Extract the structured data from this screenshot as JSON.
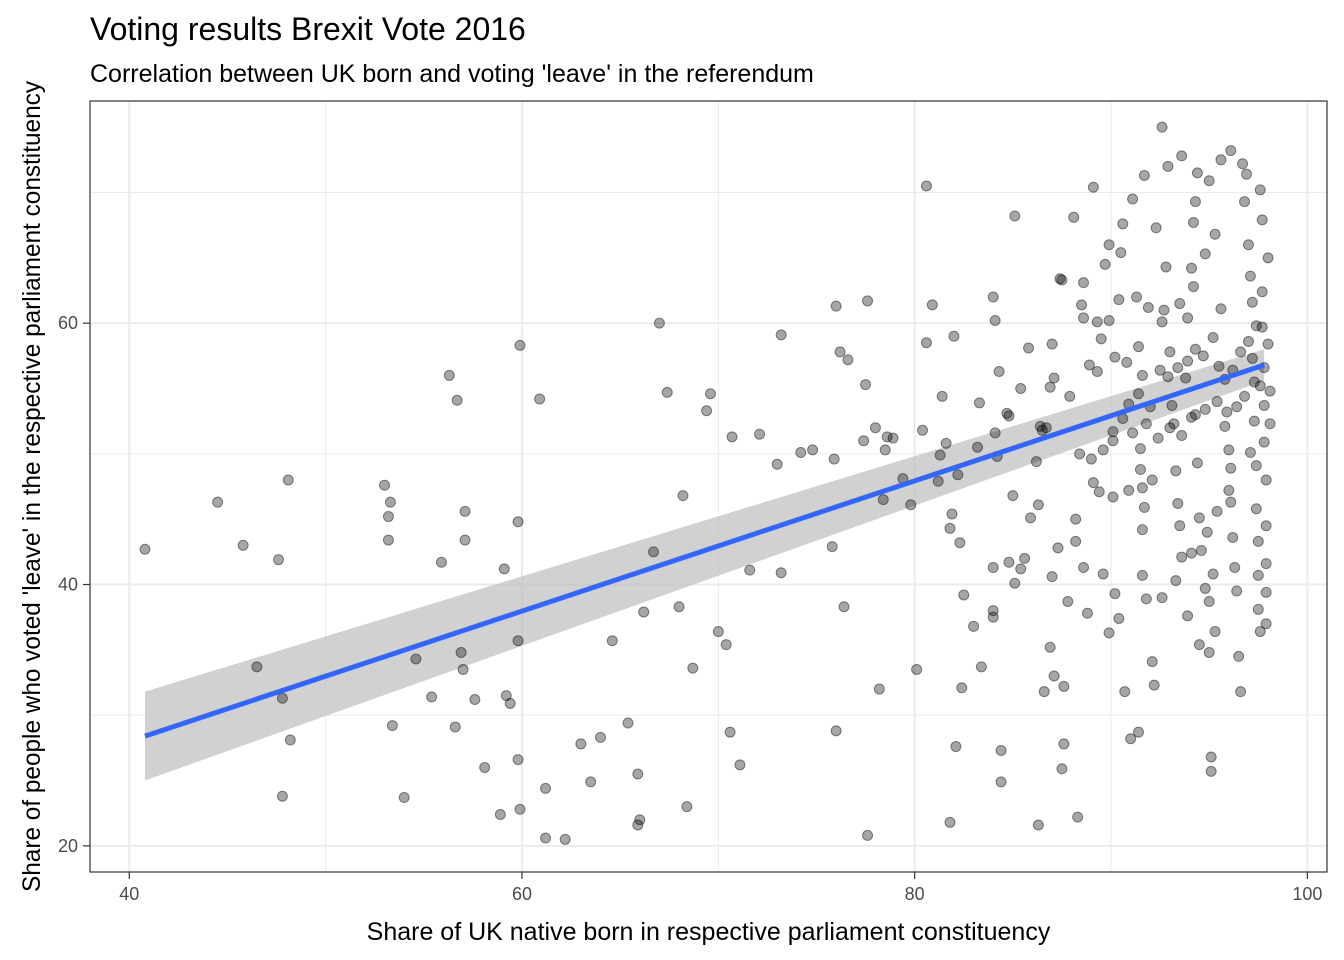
{
  "chart_data": {
    "type": "scatter",
    "title": "Voting results Brexit Vote 2016",
    "subtitle": "Correlation between UK born and voting 'leave' in the referendum",
    "xlabel": "Share of UK native born in respective parliament constituency",
    "ylabel": "Share of people who voted 'leave' in the respective parliament constituency",
    "xlim": [
      38,
      101
    ],
    "ylim": [
      18,
      77
    ],
    "x_ticks": [
      40,
      60,
      80,
      100
    ],
    "y_ticks": [
      20,
      40,
      60
    ],
    "grid": true,
    "point_color": "#000000",
    "point_opacity": 0.35,
    "trend": {
      "color": "#3366ff",
      "band_color": "#bdbdbd",
      "x": [
        40.8,
        97.8
      ],
      "y": [
        28.4,
        56.8
      ],
      "lower": [
        25.0,
        55.6
      ],
      "upper": [
        31.8,
        58.0
      ]
    },
    "points": [
      [
        40.8,
        42.7
      ],
      [
        44.5,
        46.3
      ],
      [
        45.8,
        43.0
      ],
      [
        46.5,
        33.7
      ],
      [
        47.6,
        41.9
      ],
      [
        47.8,
        31.3
      ],
      [
        48.1,
        48.0
      ],
      [
        48.2,
        28.1
      ],
      [
        47.8,
        23.8
      ],
      [
        53.0,
        47.6
      ],
      [
        53.3,
        46.3
      ],
      [
        53.2,
        45.2
      ],
      [
        53.2,
        43.4
      ],
      [
        53.4,
        29.2
      ],
      [
        54.0,
        23.7
      ],
      [
        54.6,
        34.3
      ],
      [
        55.4,
        31.4
      ],
      [
        55.9,
        41.7
      ],
      [
        56.3,
        56.0
      ],
      [
        56.7,
        54.1
      ],
      [
        56.6,
        29.1
      ],
      [
        56.9,
        34.8
      ],
      [
        57.0,
        33.5
      ],
      [
        57.1,
        45.6
      ],
      [
        57.1,
        43.4
      ],
      [
        57.6,
        31.2
      ],
      [
        58.1,
        26.0
      ],
      [
        59.1,
        41.2
      ],
      [
        59.2,
        31.5
      ],
      [
        59.4,
        30.9
      ],
      [
        58.9,
        22.4
      ],
      [
        59.9,
        58.3
      ],
      [
        59.8,
        44.8
      ],
      [
        59.8,
        35.7
      ],
      [
        59.8,
        26.6
      ],
      [
        59.9,
        22.8
      ],
      [
        60.9,
        54.2
      ],
      [
        61.2,
        24.4
      ],
      [
        61.2,
        20.6
      ],
      [
        62.2,
        20.5
      ],
      [
        63.0,
        27.8
      ],
      [
        63.5,
        24.9
      ],
      [
        64.0,
        28.3
      ],
      [
        64.6,
        35.7
      ],
      [
        65.4,
        29.4
      ],
      [
        65.9,
        25.5
      ],
      [
        65.9,
        21.6
      ],
      [
        66.0,
        22.0
      ],
      [
        66.2,
        37.9
      ],
      [
        66.7,
        42.5
      ],
      [
        67.0,
        60.0
      ],
      [
        67.4,
        54.7
      ],
      [
        68.0,
        38.3
      ],
      [
        68.2,
        46.8
      ],
      [
        68.4,
        23.0
      ],
      [
        68.7,
        33.6
      ],
      [
        69.4,
        53.3
      ],
      [
        69.6,
        54.6
      ],
      [
        70.0,
        36.4
      ],
      [
        70.4,
        35.4
      ],
      [
        70.6,
        28.7
      ],
      [
        70.7,
        51.3
      ],
      [
        71.1,
        26.2
      ],
      [
        71.6,
        41.1
      ],
      [
        72.1,
        51.5
      ],
      [
        73.0,
        49.2
      ],
      [
        73.2,
        40.9
      ],
      [
        73.2,
        59.1
      ],
      [
        74.2,
        50.1
      ],
      [
        74.8,
        50.3
      ],
      [
        76.0,
        61.3
      ],
      [
        75.9,
        49.6
      ],
      [
        75.8,
        42.9
      ],
      [
        76.0,
        28.8
      ],
      [
        76.2,
        57.8
      ],
      [
        76.4,
        38.3
      ],
      [
        76.6,
        57.2
      ],
      [
        77.4,
        51.0
      ],
      [
        77.5,
        55.3
      ],
      [
        77.6,
        61.7
      ],
      [
        77.6,
        20.8
      ],
      [
        78.0,
        52.0
      ],
      [
        78.2,
        32.0
      ],
      [
        78.4,
        46.5
      ],
      [
        78.5,
        50.3
      ],
      [
        78.6,
        51.3
      ],
      [
        78.9,
        51.2
      ],
      [
        79.4,
        48.1
      ],
      [
        79.8,
        46.1
      ],
      [
        80.1,
        33.5
      ],
      [
        80.4,
        51.8
      ],
      [
        80.6,
        58.5
      ],
      [
        80.6,
        70.5
      ],
      [
        80.9,
        61.4
      ],
      [
        81.3,
        49.9
      ],
      [
        81.4,
        54.4
      ],
      [
        81.2,
        47.9
      ],
      [
        81.8,
        44.3
      ],
      [
        81.8,
        21.8
      ],
      [
        82.0,
        59.0
      ],
      [
        82.1,
        27.6
      ],
      [
        82.2,
        48.4
      ],
      [
        82.3,
        43.2
      ],
      [
        82.4,
        32.1
      ],
      [
        83.3,
        53.9
      ],
      [
        84.0,
        62.0
      ],
      [
        84.0,
        37.5
      ],
      [
        84.0,
        38.0
      ],
      [
        84.1,
        60.2
      ],
      [
        84.1,
        51.6
      ],
      [
        84.2,
        49.8
      ],
      [
        84.3,
        56.3
      ],
      [
        84.4,
        27.3
      ],
      [
        84.4,
        24.9
      ],
      [
        84.8,
        41.7
      ],
      [
        84.7,
        53.1
      ],
      [
        84.8,
        52.9
      ],
      [
        85.0,
        46.8
      ],
      [
        85.1,
        68.2
      ],
      [
        85.4,
        41.2
      ],
      [
        85.8,
        58.1
      ],
      [
        86.4,
        52.1
      ],
      [
        86.5,
        51.8
      ],
      [
        86.3,
        21.6
      ],
      [
        86.7,
        52.0
      ],
      [
        87.0,
        58.4
      ],
      [
        87.1,
        55.8
      ],
      [
        87.1,
        33.0
      ],
      [
        87.4,
        63.4
      ],
      [
        87.5,
        63.3
      ],
      [
        87.6,
        27.8
      ],
      [
        87.5,
        25.9
      ],
      [
        87.6,
        32.2
      ],
      [
        88.1,
        68.1
      ],
      [
        88.2,
        45.0
      ],
      [
        88.3,
        22.2
      ],
      [
        88.5,
        61.4
      ],
      [
        88.6,
        60.4
      ],
      [
        88.6,
        63.1
      ],
      [
        88.8,
        37.8
      ],
      [
        89.1,
        70.4
      ],
      [
        89.1,
        47.8
      ],
      [
        89.4,
        47.1
      ],
      [
        89.3,
        60.1
      ],
      [
        89.9,
        60.2
      ],
      [
        90.1,
        51.7
      ],
      [
        90.5,
        65.4
      ],
      [
        90.9,
        53.8
      ],
      [
        90.7,
        31.8
      ],
      [
        91.4,
        58.2
      ],
      [
        91.4,
        54.6
      ],
      [
        91.5,
        50.4
      ],
      [
        91.5,
        48.8
      ],
      [
        91.6,
        47.4
      ],
      [
        91.9,
        61.2
      ],
      [
        91.6,
        44.2
      ],
      [
        91.6,
        40.7
      ],
      [
        91.8,
        38.9
      ],
      [
        92.0,
        53.6
      ],
      [
        92.1,
        48.0
      ],
      [
        92.3,
        67.3
      ],
      [
        92.6,
        75.0
      ],
      [
        92.6,
        60.1
      ],
      [
        93.0,
        57.8
      ],
      [
        93.1,
        53.7
      ],
      [
        93.2,
        52.3
      ],
      [
        93.3,
        48.7
      ],
      [
        93.4,
        46.2
      ],
      [
        93.5,
        44.5
      ],
      [
        93.6,
        42.1
      ],
      [
        93.8,
        55.8
      ],
      [
        93.9,
        60.4
      ],
      [
        94.1,
        64.2
      ],
      [
        94.2,
        67.7
      ],
      [
        94.3,
        69.3
      ],
      [
        94.3,
        53.0
      ],
      [
        94.4,
        49.3
      ],
      [
        94.5,
        45.1
      ],
      [
        94.6,
        42.6
      ],
      [
        94.8,
        39.7
      ],
      [
        95.0,
        38.7
      ],
      [
        95.2,
        40.8
      ],
      [
        95.3,
        36.4
      ],
      [
        95.6,
        61.1
      ],
      [
        95.8,
        55.7
      ],
      [
        95.9,
        53.2
      ],
      [
        96.0,
        50.3
      ],
      [
        96.1,
        48.9
      ],
      [
        96.1,
        46.3
      ],
      [
        96.2,
        43.6
      ],
      [
        96.3,
        41.3
      ],
      [
        96.4,
        39.5
      ],
      [
        96.5,
        34.5
      ],
      [
        96.6,
        31.8
      ],
      [
        96.7,
        72.2
      ],
      [
        96.8,
        69.3
      ],
      [
        96.9,
        71.4
      ],
      [
        97.0,
        66.0
      ],
      [
        97.1,
        63.6
      ],
      [
        97.2,
        61.6
      ],
      [
        97.2,
        57.3
      ],
      [
        97.3,
        55.5
      ],
      [
        97.3,
        52.5
      ],
      [
        97.4,
        49.1
      ],
      [
        97.4,
        45.8
      ],
      [
        97.5,
        43.3
      ],
      [
        97.5,
        40.7
      ],
      [
        97.5,
        38.1
      ],
      [
        97.6,
        36.4
      ],
      [
        97.6,
        70.2
      ],
      [
        97.7,
        67.9
      ],
      [
        97.7,
        62.4
      ],
      [
        97.7,
        59.7
      ],
      [
        97.8,
        56.6
      ],
      [
        97.8,
        53.7
      ],
      [
        97.8,
        50.9
      ],
      [
        97.9,
        48.0
      ],
      [
        97.9,
        44.5
      ],
      [
        97.9,
        41.6
      ],
      [
        97.9,
        39.4
      ],
      [
        97.9,
        37.0
      ],
      [
        98.0,
        65.0
      ],
      [
        98.0,
        58.4
      ],
      [
        98.1,
        54.8
      ],
      [
        98.1,
        52.3
      ],
      [
        95.1,
        26.8
      ],
      [
        95.1,
        25.7
      ],
      [
        95.0,
        34.8
      ],
      [
        94.5,
        35.4
      ],
      [
        93.9,
        37.6
      ],
      [
        92.1,
        34.1
      ],
      [
        92.2,
        32.3
      ],
      [
        91.0,
        28.2
      ],
      [
        91.4,
        28.7
      ],
      [
        90.4,
        37.4
      ],
      [
        89.9,
        36.3
      ],
      [
        90.2,
        39.3
      ],
      [
        89.6,
        40.8
      ],
      [
        88.6,
        41.3
      ],
      [
        88.2,
        43.3
      ],
      [
        87.8,
        38.7
      ],
      [
        87.3,
        42.8
      ],
      [
        87.0,
        40.6
      ],
      [
        86.3,
        46.1
      ],
      [
        86.2,
        49.4
      ],
      [
        85.6,
        42.0
      ],
      [
        85.9,
        45.1
      ],
      [
        86.9,
        35.2
      ],
      [
        86.6,
        31.8
      ],
      [
        85.1,
        40.1
      ],
      [
        84.0,
        41.3
      ],
      [
        83.4,
        33.7
      ],
      [
        83.0,
        36.8
      ],
      [
        82.5,
        39.2
      ],
      [
        81.9,
        45.4
      ],
      [
        81.6,
        50.8
      ],
      [
        83.2,
        50.5
      ],
      [
        85.4,
        55.0
      ],
      [
        86.9,
        55.1
      ],
      [
        87.9,
        54.4
      ],
      [
        88.9,
        56.8
      ],
      [
        89.3,
        56.3
      ],
      [
        89.5,
        58.8
      ],
      [
        90.2,
        57.4
      ],
      [
        90.8,
        57.0
      ],
      [
        91.6,
        56.0
      ],
      [
        92.5,
        56.4
      ],
      [
        92.9,
        55.9
      ],
      [
        93.4,
        56.6
      ],
      [
        93.9,
        57.1
      ],
      [
        94.3,
        58.0
      ],
      [
        94.7,
        57.5
      ],
      [
        95.2,
        58.9
      ],
      [
        95.5,
        56.7
      ],
      [
        96.2,
        56.4
      ],
      [
        96.6,
        57.8
      ],
      [
        97.0,
        58.6
      ],
      [
        97.4,
        59.8
      ],
      [
        97.6,
        55.2
      ],
      [
        88.4,
        50.0
      ],
      [
        89.0,
        49.6
      ],
      [
        89.6,
        50.3
      ],
      [
        90.1,
        51.0
      ],
      [
        90.6,
        52.7
      ],
      [
        91.1,
        51.6
      ],
      [
        91.8,
        52.3
      ],
      [
        92.4,
        51.2
      ],
      [
        93.0,
        52.0
      ],
      [
        93.6,
        51.4
      ],
      [
        94.1,
        52.8
      ],
      [
        94.8,
        53.4
      ],
      [
        95.4,
        54.0
      ],
      [
        95.8,
        52.1
      ],
      [
        96.4,
        53.6
      ],
      [
        96.8,
        54.4
      ],
      [
        97.1,
        50.1
      ],
      [
        92.8,
        64.3
      ],
      [
        91.3,
        62.0
      ],
      [
        90.4,
        61.8
      ],
      [
        89.7,
        64.5
      ],
      [
        89.9,
        66.0
      ],
      [
        90.6,
        67.6
      ],
      [
        91.1,
        69.5
      ],
      [
        91.7,
        71.3
      ],
      [
        92.9,
        72.0
      ],
      [
        93.6,
        72.8
      ],
      [
        94.4,
        71.5
      ],
      [
        95.0,
        70.9
      ],
      [
        95.6,
        72.5
      ],
      [
        96.1,
        73.2
      ],
      [
        95.3,
        66.8
      ],
      [
        94.8,
        65.3
      ],
      [
        94.2,
        62.8
      ],
      [
        93.5,
        61.5
      ],
      [
        92.7,
        61.0
      ],
      [
        96.0,
        47.2
      ],
      [
        95.4,
        45.6
      ],
      [
        94.9,
        44.0
      ],
      [
        94.1,
        42.4
      ],
      [
        93.3,
        40.3
      ],
      [
        92.6,
        39.0
      ],
      [
        91.7,
        45.9
      ],
      [
        90.9,
        47.2
      ],
      [
        90.1,
        46.7
      ]
    ]
  }
}
